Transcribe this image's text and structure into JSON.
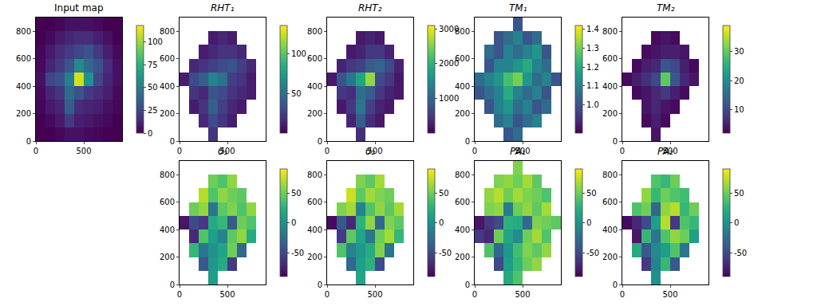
{
  "chart_data": [
    {
      "type": "heatmap",
      "title": "Input map",
      "color": "Viridis",
      "x": [
        50,
        150,
        250,
        350,
        450,
        550,
        650,
        750,
        850
      ],
      "y": [
        50,
        150,
        250,
        350,
        450,
        550,
        650,
        750,
        850
      ],
      "z": [
        [
          0,
          0,
          2,
          5,
          5,
          3,
          2,
          0,
          0
        ],
        [
          0,
          3,
          8,
          20,
          10,
          8,
          5,
          3,
          0
        ],
        [
          2,
          8,
          12,
          35,
          15,
          12,
          10,
          5,
          2
        ],
        [
          3,
          12,
          18,
          40,
          30,
          20,
          15,
          10,
          3
        ],
        [
          5,
          25,
          30,
          50,
          110,
          60,
          25,
          12,
          5
        ],
        [
          3,
          12,
          20,
          30,
          55,
          40,
          30,
          15,
          5
        ],
        [
          2,
          8,
          15,
          20,
          25,
          30,
          20,
          10,
          3
        ],
        [
          0,
          3,
          8,
          12,
          15,
          15,
          10,
          5,
          0
        ],
        [
          0,
          0,
          2,
          5,
          5,
          5,
          3,
          0,
          0
        ]
      ],
      "xlim": [
        0,
        900
      ],
      "ylim": [
        0,
        900
      ],
      "xticks": [
        0,
        500
      ],
      "yticks": [
        0,
        200,
        400,
        600,
        800
      ],
      "zlim": [
        0,
        118
      ],
      "zticks": [
        0,
        25,
        50,
        75,
        100
      ]
    },
    {
      "type": "heatmap",
      "title": "RHT₁",
      "color": "Viridis",
      "x": [
        50,
        150,
        250,
        350,
        450,
        550,
        650,
        750,
        850
      ],
      "y": [
        50,
        150,
        250,
        350,
        450,
        550,
        650,
        750,
        850
      ],
      "z": [
        [
          null,
          null,
          null,
          20,
          null,
          null,
          null,
          null,
          null
        ],
        [
          null,
          null,
          15,
          30,
          20,
          10,
          null,
          null,
          null
        ],
        [
          null,
          10,
          20,
          40,
          25,
          15,
          10,
          null,
          null
        ],
        [
          null,
          20,
          15,
          35,
          30,
          20,
          15,
          10,
          null
        ],
        [
          10,
          30,
          40,
          60,
          50,
          25,
          20,
          10,
          null
        ],
        [
          null,
          15,
          20,
          25,
          30,
          35,
          25,
          15,
          null
        ],
        [
          null,
          null,
          10,
          15,
          20,
          20,
          15,
          null,
          null
        ],
        [
          null,
          null,
          null,
          10,
          15,
          10,
          null,
          null,
          null
        ],
        [
          null,
          null,
          null,
          null,
          null,
          null,
          null,
          null,
          null
        ]
      ],
      "xlim": [
        0,
        900
      ],
      "ylim": [
        0,
        900
      ],
      "xticks": [
        0,
        500
      ],
      "yticks": [
        0,
        200,
        400,
        600,
        800
      ],
      "zlim": [
        0,
        135
      ],
      "zticks": [
        50,
        100
      ]
    },
    {
      "type": "heatmap",
      "title": "RHT₂",
      "color": "Viridis",
      "x": [
        50,
        150,
        250,
        350,
        450,
        550,
        650,
        750,
        850
      ],
      "y": [
        50,
        150,
        250,
        350,
        450,
        550,
        650,
        750,
        850
      ],
      "z": [
        [
          null,
          null,
          null,
          400,
          null,
          null,
          null,
          null,
          null
        ],
        [
          null,
          null,
          300,
          900,
          400,
          200,
          null,
          null,
          null
        ],
        [
          null,
          200,
          500,
          1200,
          600,
          300,
          200,
          null,
          null
        ],
        [
          null,
          500,
          400,
          1100,
          900,
          500,
          300,
          200,
          null
        ],
        [
          200,
          800,
          1200,
          1800,
          2600,
          700,
          500,
          200,
          null
        ],
        [
          null,
          300,
          500,
          600,
          900,
          1000,
          700,
          300,
          null
        ],
        [
          null,
          null,
          200,
          300,
          500,
          500,
          300,
          null,
          null
        ],
        [
          null,
          null,
          null,
          200,
          300,
          200,
          null,
          null,
          null
        ],
        [
          null,
          null,
          null,
          null,
          null,
          null,
          null,
          null,
          null
        ]
      ],
      "xlim": [
        0,
        900
      ],
      "ylim": [
        0,
        900
      ],
      "xticks": [
        0,
        500
      ],
      "yticks": [
        0,
        200,
        400,
        600,
        800
      ],
      "zlim": [
        0,
        3100
      ],
      "zticks": [
        1000,
        2000,
        3000
      ]
    },
    {
      "type": "heatmap",
      "title": "TM₁",
      "color": "Viridis",
      "x": [
        50,
        150,
        250,
        350,
        450,
        550,
        650,
        750,
        850
      ],
      "y": [
        50,
        150,
        250,
        350,
        450,
        550,
        650,
        750,
        850
      ],
      "z": [
        [
          null,
          null,
          null,
          1.0,
          1.05,
          null,
          null,
          null,
          null
        ],
        [
          null,
          null,
          1.05,
          1.1,
          1.0,
          1.05,
          1.1,
          null,
          null
        ],
        [
          null,
          1.0,
          1.1,
          1.15,
          1.05,
          1.1,
          1.0,
          1.05,
          null
        ],
        [
          1.0,
          1.05,
          1.1,
          1.2,
          1.1,
          1.05,
          1.1,
          1.0,
          null
        ],
        [
          1.05,
          1.1,
          1.15,
          1.25,
          1.3,
          1.15,
          1.05,
          1.1,
          1.0
        ],
        [
          null,
          1.0,
          1.1,
          1.1,
          1.15,
          1.2,
          1.1,
          1.05,
          null
        ],
        [
          null,
          1.05,
          1.0,
          1.1,
          1.05,
          1.1,
          1.15,
          1.0,
          null
        ],
        [
          null,
          null,
          1.0,
          1.05,
          1.1,
          1.0,
          1.05,
          null,
          null
        ],
        [
          null,
          null,
          null,
          null,
          1.0,
          null,
          null,
          null,
          null
        ]
      ],
      "xlim": [
        0,
        900
      ],
      "ylim": [
        0,
        900
      ],
      "xticks": [
        0,
        500
      ],
      "yticks": [
        0,
        200,
        400,
        600,
        800
      ],
      "zlim": [
        0.85,
        1.42
      ],
      "zticks": [
        {
          "value": 1.0,
          "label": "1.0"
        },
        1.1,
        1.2,
        1.3,
        1.4
      ]
    },
    {
      "type": "heatmap",
      "title": "TM₂",
      "color": "Viridis",
      "x": [
        50,
        150,
        250,
        350,
        450,
        550,
        650,
        750,
        850
      ],
      "y": [
        50,
        150,
        250,
        350,
        450,
        550,
        650,
        750,
        850
      ],
      "z": [
        [
          null,
          null,
          null,
          4,
          null,
          null,
          null,
          null,
          null
        ],
        [
          null,
          null,
          3,
          5,
          3,
          null,
          null,
          null,
          null
        ],
        [
          null,
          null,
          4,
          6,
          4,
          3,
          null,
          null,
          null
        ],
        [
          null,
          3,
          4,
          6,
          8,
          5,
          3,
          null,
          null
        ],
        [
          3,
          5,
          7,
          10,
          30,
          12,
          6,
          4,
          null
        ],
        [
          null,
          3,
          5,
          6,
          12,
          10,
          5,
          3,
          null
        ],
        [
          null,
          null,
          3,
          4,
          5,
          5,
          4,
          null,
          null
        ],
        [
          null,
          null,
          null,
          3,
          4,
          3,
          null,
          null,
          null
        ],
        [
          null,
          null,
          null,
          null,
          null,
          null,
          null,
          null,
          null
        ]
      ],
      "xlim": [
        0,
        900
      ],
      "ylim": [
        0,
        900
      ],
      "xticks": [
        0,
        500
      ],
      "yticks": [
        0,
        200,
        400,
        600,
        800
      ],
      "zlim": [
        2,
        39
      ],
      "zticks": [
        10,
        20,
        30
      ]
    },
    {
      "type": "heatmap",
      "title": "θ₁",
      "color": "Viridis",
      "x": [
        50,
        150,
        250,
        350,
        450,
        550,
        650,
        750,
        850
      ],
      "y": [
        50,
        150,
        250,
        350,
        450,
        550,
        650,
        750,
        850
      ],
      "z": [
        [
          null,
          null,
          null,
          10,
          null,
          null,
          null,
          null,
          null
        ],
        [
          null,
          null,
          -40,
          5,
          20,
          -60,
          null,
          null,
          null
        ],
        [
          null,
          30,
          -20,
          0,
          15,
          50,
          -30,
          null,
          null
        ],
        [
          null,
          -70,
          40,
          10,
          -10,
          45,
          60,
          20,
          null
        ],
        [
          -80,
          -50,
          -60,
          20,
          30,
          -40,
          50,
          40,
          null
        ],
        [
          null,
          50,
          60,
          -20,
          45,
          55,
          40,
          60,
          null
        ],
        [
          null,
          null,
          70,
          40,
          60,
          50,
          45,
          null,
          null
        ],
        [
          null,
          null,
          null,
          50,
          40,
          60,
          null,
          null,
          null
        ],
        [
          null,
          null,
          null,
          null,
          null,
          null,
          null,
          null,
          null
        ]
      ],
      "xlim": [
        0,
        900
      ],
      "ylim": [
        0,
        900
      ],
      "xticks": [
        0,
        500
      ],
      "yticks": [
        0,
        200,
        400,
        600,
        800
      ],
      "zlim": [
        -90,
        90
      ],
      "zticks": [
        -50,
        0,
        50
      ]
    },
    {
      "type": "heatmap",
      "title": "θ₂",
      "color": "Viridis",
      "x": [
        50,
        150,
        250,
        350,
        450,
        550,
        650,
        750,
        850
      ],
      "y": [
        50,
        150,
        250,
        350,
        450,
        550,
        650,
        750,
        850
      ],
      "z": [
        [
          null,
          null,
          null,
          15,
          null,
          null,
          null,
          null,
          null
        ],
        [
          null,
          null,
          -30,
          10,
          25,
          -50,
          null,
          null,
          null
        ],
        [
          null,
          40,
          -10,
          5,
          20,
          55,
          -20,
          null,
          null
        ],
        [
          null,
          -60,
          45,
          15,
          -20,
          50,
          65,
          30,
          null
        ],
        [
          -85,
          -40,
          -70,
          25,
          60,
          -30,
          55,
          45,
          null
        ],
        [
          null,
          55,
          65,
          -10,
          40,
          60,
          45,
          65,
          null
        ],
        [
          null,
          null,
          75,
          45,
          65,
          55,
          50,
          null,
          null
        ],
        [
          null,
          null,
          null,
          55,
          45,
          65,
          null,
          null,
          null
        ],
        [
          null,
          null,
          null,
          null,
          null,
          null,
          null,
          null,
          null
        ]
      ],
      "xlim": [
        0,
        900
      ],
      "ylim": [
        0,
        900
      ],
      "xticks": [
        0,
        500
      ],
      "yticks": [
        0,
        200,
        400,
        600,
        800
      ],
      "zlim": [
        -90,
        90
      ],
      "zticks": [
        -50,
        0,
        50
      ]
    },
    {
      "type": "heatmap",
      "title": "PA₁",
      "color": "Viridis",
      "x": [
        50,
        150,
        250,
        350,
        450,
        550,
        650,
        750,
        850
      ],
      "y": [
        50,
        150,
        250,
        350,
        450,
        550,
        650,
        750,
        850
      ],
      "z": [
        [
          null,
          null,
          null,
          20,
          40,
          null,
          null,
          null,
          null
        ],
        [
          null,
          null,
          -50,
          10,
          30,
          50,
          60,
          null,
          null
        ],
        [
          null,
          40,
          -30,
          5,
          35,
          55,
          45,
          60,
          null
        ],
        [
          -60,
          -70,
          50,
          15,
          -5,
          50,
          65,
          40,
          null
        ],
        [
          -80,
          -60,
          -50,
          25,
          20,
          -30,
          55,
          50,
          45
        ],
        [
          null,
          55,
          60,
          -15,
          50,
          60,
          45,
          65,
          null
        ],
        [
          null,
          60,
          70,
          50,
          65,
          55,
          50,
          40,
          null
        ],
        [
          null,
          null,
          55,
          60,
          50,
          65,
          45,
          null,
          null
        ],
        [
          null,
          null,
          null,
          null,
          55,
          null,
          null,
          null,
          null
        ]
      ],
      "xlim": [
        0,
        900
      ],
      "ylim": [
        0,
        900
      ],
      "xticks": [
        0,
        500
      ],
      "yticks": [
        0,
        200,
        400,
        600,
        800
      ],
      "zlim": [
        -90,
        90
      ],
      "zticks": [
        -50,
        0,
        50
      ]
    },
    {
      "type": "heatmap",
      "title": "PA₂",
      "color": "Viridis",
      "x": [
        50,
        150,
        250,
        350,
        450,
        550,
        650,
        750,
        850
      ],
      "y": [
        50,
        150,
        250,
        350,
        450,
        550,
        650,
        750,
        850
      ],
      "z": [
        [
          null,
          null,
          null,
          0,
          null,
          null,
          null,
          null,
          null
        ],
        [
          null,
          null,
          -60,
          -10,
          30,
          -40,
          null,
          null,
          null
        ],
        [
          null,
          20,
          -40,
          -5,
          10,
          40,
          -20,
          null,
          null
        ],
        [
          null,
          -80,
          30,
          -20,
          40,
          60,
          50,
          10,
          null
        ],
        [
          -85,
          -70,
          -50,
          10,
          70,
          -60,
          40,
          30,
          null
        ],
        [
          null,
          40,
          50,
          -30,
          60,
          70,
          30,
          50,
          null
        ],
        [
          null,
          null,
          60,
          30,
          50,
          40,
          35,
          null,
          null
        ],
        [
          null,
          null,
          null,
          40,
          30,
          50,
          null,
          null,
          null
        ],
        [
          null,
          null,
          null,
          null,
          null,
          null,
          null,
          null,
          null
        ]
      ],
      "xlim": [
        0,
        900
      ],
      "ylim": [
        0,
        900
      ],
      "xticks": [
        0,
        500
      ],
      "yticks": [
        0,
        200,
        400,
        600,
        800
      ],
      "zlim": [
        -90,
        90
      ],
      "zticks": [
        -50,
        0,
        50
      ]
    }
  ]
}
